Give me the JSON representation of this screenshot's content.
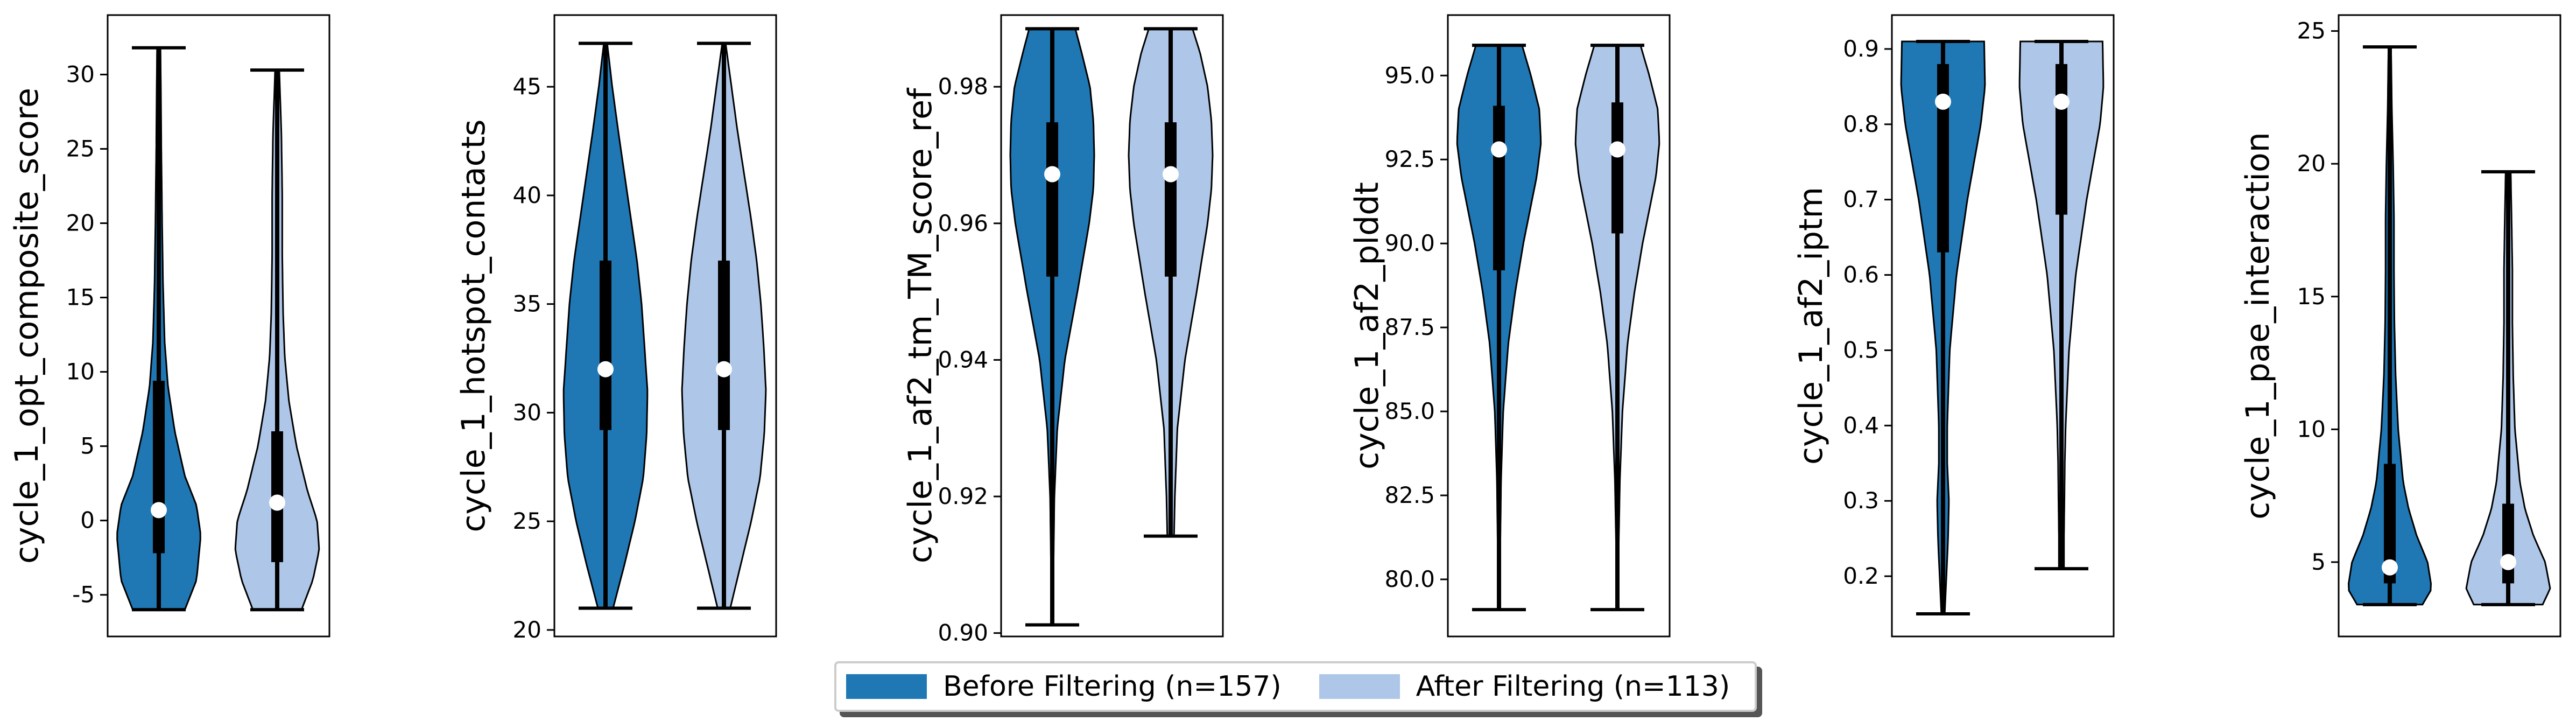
{
  "legend": {
    "placement": "bottom-center",
    "items": [
      {
        "label": "Before Filtering (n=157)",
        "color": "#1f77b4"
      },
      {
        "label": "After Filtering (n=113)",
        "color": "#aec7e8"
      }
    ]
  },
  "chart_data": [
    {
      "type": "violin",
      "ylabel": "cycle_1_opt_composite_score",
      "yticks": [
        -5,
        0,
        5,
        10,
        15,
        20,
        25,
        30
      ],
      "ylim": [
        -7.8,
        34
      ],
      "groups": [
        {
          "series": "Before Filtering (n=157)",
          "min": -6,
          "max": 31.8,
          "q1": -2.2,
          "median": 0.7,
          "q3": 9.4,
          "density_y": [
            -6,
            -4,
            -1,
            1,
            3,
            6,
            9,
            12,
            16,
            20,
            25,
            29,
            31.8
          ],
          "density_w": [
            0.62,
            0.9,
            1.0,
            0.9,
            0.62,
            0.38,
            0.22,
            0.14,
            0.1,
            0.08,
            0.06,
            0.05,
            0.04
          ]
        },
        {
          "series": "After Filtering (n=113)",
          "min": -6,
          "max": 30.3,
          "q1": -2.8,
          "median": 1.2,
          "q3": 6.0,
          "density_y": [
            -6,
            -4,
            -2,
            0,
            2,
            5,
            8,
            11,
            14,
            18,
            22,
            26,
            30.3
          ],
          "density_w": [
            0.58,
            0.85,
            1.0,
            0.95,
            0.72,
            0.46,
            0.28,
            0.18,
            0.14,
            0.12,
            0.12,
            0.1,
            0.05
          ]
        }
      ]
    },
    {
      "type": "violin",
      "ylabel": "cycle_1_hotspot_contacts",
      "yticks": [
        20,
        25,
        30,
        35,
        40,
        45
      ],
      "ylim": [
        19.7,
        48.3
      ],
      "groups": [
        {
          "series": "Before Filtering (n=157)",
          "min": 21,
          "max": 47,
          "q1": 29.2,
          "median": 32,
          "q3": 37,
          "density_y": [
            21,
            23,
            25,
            27,
            29,
            31,
            33,
            35,
            37,
            39,
            41,
            43,
            45,
            47
          ],
          "density_w": [
            0.18,
            0.45,
            0.7,
            0.9,
            0.98,
            1.0,
            0.93,
            0.86,
            0.75,
            0.6,
            0.45,
            0.3,
            0.16,
            0.04
          ]
        },
        {
          "series": "After Filtering (n=113)",
          "min": 21,
          "max": 47,
          "q1": 29.2,
          "median": 32,
          "q3": 37,
          "density_y": [
            21,
            23,
            25,
            27,
            29,
            31,
            33,
            35,
            37,
            39,
            41,
            43,
            45,
            47
          ],
          "density_w": [
            0.15,
            0.4,
            0.65,
            0.86,
            0.96,
            1.0,
            0.95,
            0.88,
            0.78,
            0.64,
            0.48,
            0.32,
            0.18,
            0.04
          ]
        }
      ]
    },
    {
      "type": "violin",
      "ylabel": "cycle_1_af2_tm_TM_score_ref",
      "yticks": [
        0.9,
        0.92,
        0.94,
        0.96,
        0.98
      ],
      "ytick_labels": [
        "0.90",
        "0.92",
        "0.94",
        "0.96",
        "0.98"
      ],
      "ylim": [
        0.8995,
        0.9905
      ],
      "groups": [
        {
          "series": "Before Filtering (n=157)",
          "min": 0.9012,
          "max": 0.9885,
          "q1": 0.9522,
          "median": 0.9672,
          "q3": 0.9748,
          "density_y": [
            0.9012,
            0.91,
            0.92,
            0.93,
            0.94,
            0.95,
            0.96,
            0.965,
            0.97,
            0.975,
            0.98,
            0.985,
            0.9885
          ],
          "density_w": [
            0.02,
            0.03,
            0.05,
            0.12,
            0.3,
            0.6,
            0.88,
            0.98,
            1.0,
            0.98,
            0.9,
            0.7,
            0.55
          ]
        },
        {
          "series": "After Filtering (n=113)",
          "min": 0.9142,
          "max": 0.9885,
          "q1": 0.9522,
          "median": 0.9672,
          "q3": 0.9748,
          "density_y": [
            0.9142,
            0.92,
            0.93,
            0.94,
            0.95,
            0.96,
            0.965,
            0.97,
            0.975,
            0.98,
            0.985,
            0.9885
          ],
          "density_w": [
            0.08,
            0.1,
            0.16,
            0.34,
            0.62,
            0.88,
            0.97,
            1.0,
            0.97,
            0.88,
            0.7,
            0.52
          ]
        }
      ]
    },
    {
      "type": "violin",
      "ylabel": "cycle_1_af2_plddt",
      "yticks": [
        80,
        82.5,
        85,
        87.5,
        90,
        92.5,
        95
      ],
      "ytick_labels": [
        "80.0",
        "82.5",
        "85.0",
        "87.5",
        "90.0",
        "92.5",
        "95.0"
      ],
      "ylim": [
        78.3,
        96.8
      ],
      "groups": [
        {
          "series": "Before Filtering (n=157)",
          "min": 79.1,
          "max": 95.9,
          "q1": 89.2,
          "median": 92.8,
          "q3": 94.1,
          "density_y": [
            79.1,
            81,
            83,
            85,
            87,
            88.5,
            90,
            91,
            92,
            93,
            94,
            95,
            95.9
          ],
          "density_w": [
            0.02,
            0.03,
            0.05,
            0.1,
            0.22,
            0.38,
            0.58,
            0.74,
            0.9,
            1.0,
            0.96,
            0.76,
            0.55
          ]
        },
        {
          "series": "After Filtering (n=113)",
          "min": 79.1,
          "max": 95.9,
          "q1": 90.3,
          "median": 92.8,
          "q3": 94.2,
          "density_y": [
            79.1,
            81,
            83,
            85,
            87,
            88.5,
            90,
            91,
            92,
            93,
            94,
            95,
            95.9
          ],
          "density_w": [
            0.02,
            0.03,
            0.06,
            0.12,
            0.24,
            0.4,
            0.6,
            0.76,
            0.92,
            1.0,
            0.96,
            0.76,
            0.55
          ]
        }
      ]
    },
    {
      "type": "violin",
      "ylabel": "cycle_1_af2_iptm",
      "yticks": [
        0.2,
        0.3,
        0.4,
        0.5,
        0.6,
        0.7,
        0.8,
        0.9
      ],
      "ylim": [
        0.12,
        0.945
      ],
      "groups": [
        {
          "series": "Before Filtering (n=157)",
          "min": 0.15,
          "max": 0.91,
          "q1": 0.63,
          "median": 0.83,
          "q3": 0.88,
          "density_y": [
            0.15,
            0.2,
            0.25,
            0.3,
            0.35,
            0.4,
            0.5,
            0.6,
            0.7,
            0.8,
            0.85,
            0.91
          ],
          "density_w": [
            0.04,
            0.08,
            0.12,
            0.14,
            0.1,
            0.1,
            0.16,
            0.32,
            0.58,
            0.9,
            1.0,
            0.98
          ]
        },
        {
          "series": "After Filtering (n=113)",
          "min": 0.21,
          "max": 0.91,
          "q1": 0.68,
          "median": 0.83,
          "q3": 0.88,
          "density_y": [
            0.21,
            0.25,
            0.3,
            0.35,
            0.4,
            0.5,
            0.6,
            0.7,
            0.8,
            0.85,
            0.91
          ],
          "density_w": [
            0.06,
            0.06,
            0.07,
            0.08,
            0.1,
            0.18,
            0.34,
            0.6,
            0.92,
            1.0,
            0.98
          ]
        }
      ]
    },
    {
      "type": "violin",
      "ylabel": "cycle_1_pae_interaction",
      "yticks": [
        5,
        10,
        15,
        20,
        25
      ],
      "ylim": [
        2.2,
        25.6
      ],
      "groups": [
        {
          "series": "Before Filtering (n=157)",
          "min": 3.4,
          "max": 24.4,
          "q1": 4.2,
          "median": 4.8,
          "q3": 8.7,
          "density_y": [
            3.4,
            4,
            5,
            6,
            7,
            8,
            10,
            12,
            14,
            16,
            18,
            20,
            22,
            24.4
          ],
          "density_w": [
            0.78,
            1.0,
            0.9,
            0.64,
            0.45,
            0.32,
            0.2,
            0.14,
            0.11,
            0.1,
            0.1,
            0.08,
            0.05,
            0.03
          ]
        },
        {
          "series": "After Filtering (n=113)",
          "min": 3.4,
          "max": 19.7,
          "q1": 4.2,
          "median": 5.0,
          "q3": 7.2,
          "density_y": [
            3.4,
            4,
            5,
            6,
            7,
            8,
            10,
            12,
            14,
            16,
            18,
            19.7
          ],
          "density_w": [
            0.82,
            1.0,
            0.88,
            0.6,
            0.4,
            0.28,
            0.16,
            0.12,
            0.1,
            0.1,
            0.08,
            0.06
          ]
        }
      ]
    }
  ]
}
